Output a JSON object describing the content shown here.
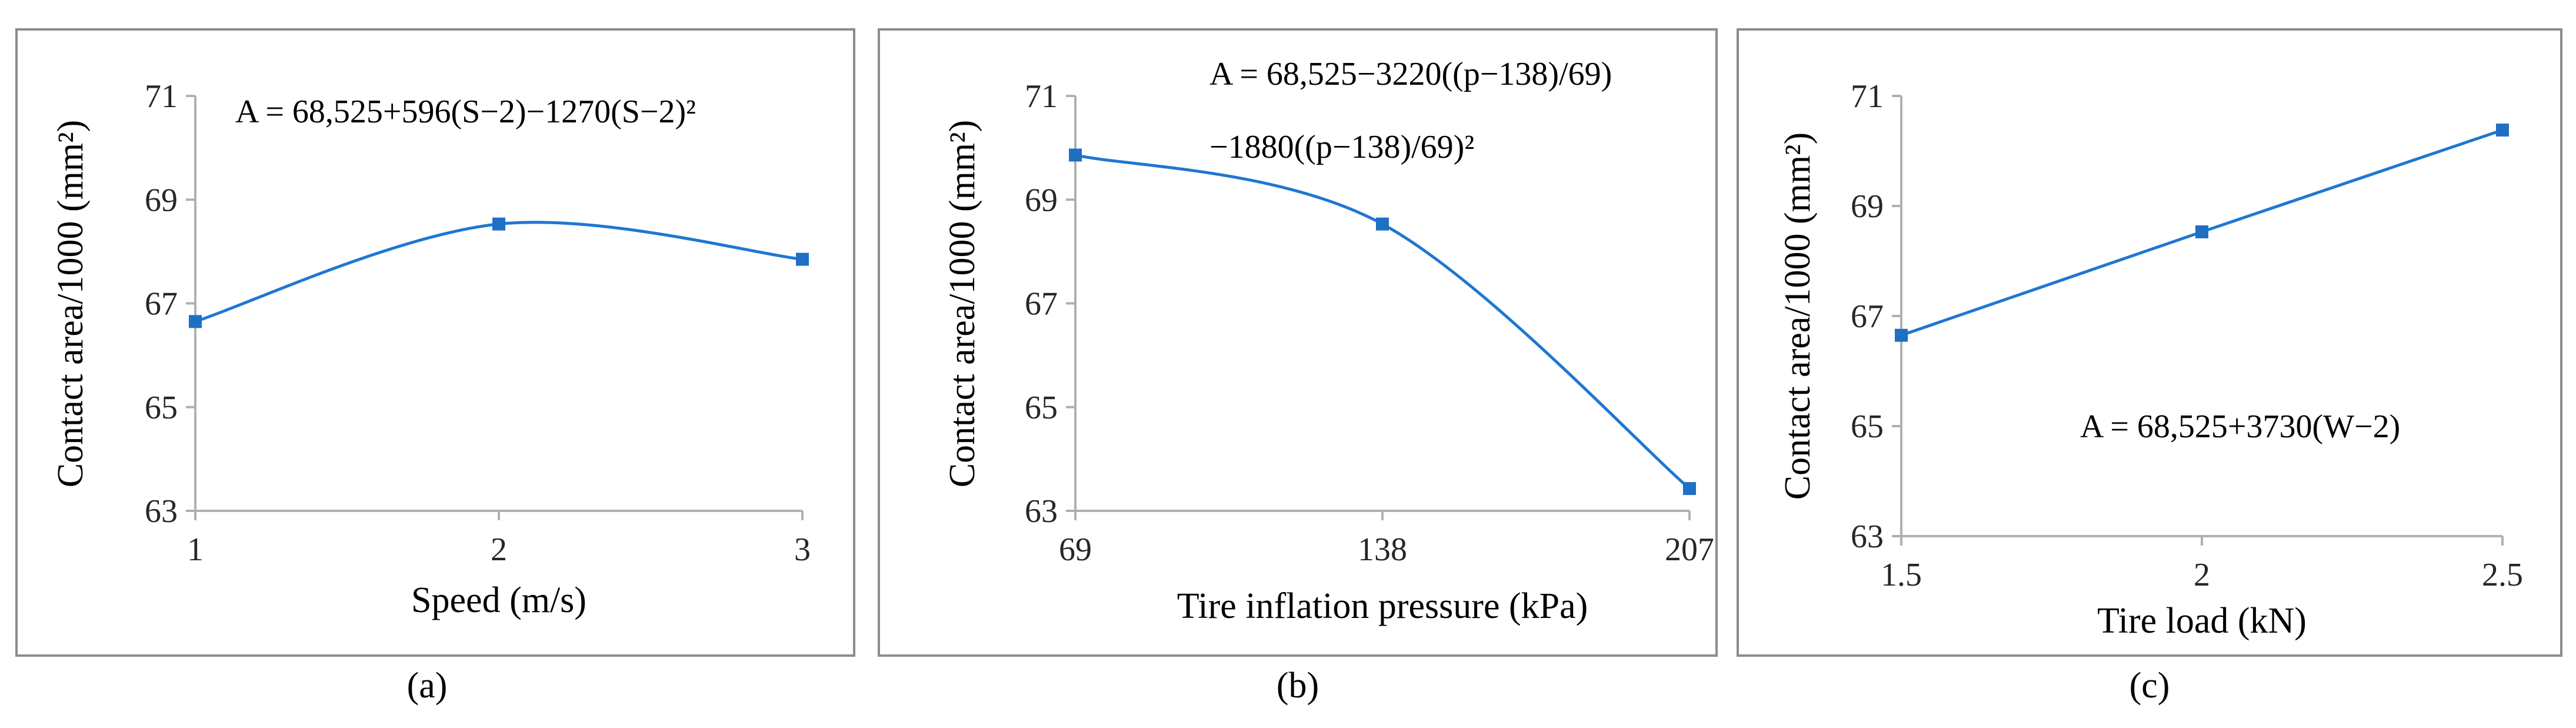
{
  "chart_data": [
    {
      "panel": "a",
      "type": "line",
      "smooth": true,
      "x": [
        1,
        2,
        3
      ],
      "values": [
        66.65,
        68.53,
        67.85
      ],
      "xlabel": "Speed (m/s)",
      "ylabel": "Contact area/1000 (mm²)",
      "xticks": [
        "1",
        "2",
        "3"
      ],
      "yticks": [
        "63",
        "65",
        "67",
        "69",
        "71"
      ],
      "ylim": [
        63,
        71
      ],
      "equation": [
        "A = 68,525+596(S−2)−1270(S−2)²"
      ],
      "caption": "(a)"
    },
    {
      "panel": "b",
      "type": "line",
      "smooth": true,
      "x": [
        69,
        138,
        207
      ],
      "values": [
        69.86,
        68.53,
        63.43
      ],
      "xlabel": "Tire inflation pressure (kPa)",
      "ylabel": "Contact area/1000 (mm²)",
      "xticks": [
        "69",
        "138",
        "207"
      ],
      "yticks": [
        "63",
        "65",
        "67",
        "69",
        "71"
      ],
      "ylim": [
        63,
        71
      ],
      "equation": [
        "A = 68,525−3220((p−138)/69)",
        "−1880((p−138)/69)²"
      ],
      "caption": "(b)"
    },
    {
      "panel": "c",
      "type": "line",
      "smooth": false,
      "x": [
        1.5,
        2,
        2.5
      ],
      "values": [
        66.65,
        68.53,
        70.38
      ],
      "xlabel": "Tire load (kN)",
      "ylabel": "Contact area/1000 (mm²)",
      "xticks": [
        "1.5",
        "2",
        "2.5"
      ],
      "yticks": [
        "63",
        "65",
        "67",
        "69",
        "71"
      ],
      "ylim": [
        63,
        71
      ],
      "equation": [
        "A = 68,525+3730(W−2)"
      ],
      "caption": "(c)"
    }
  ]
}
